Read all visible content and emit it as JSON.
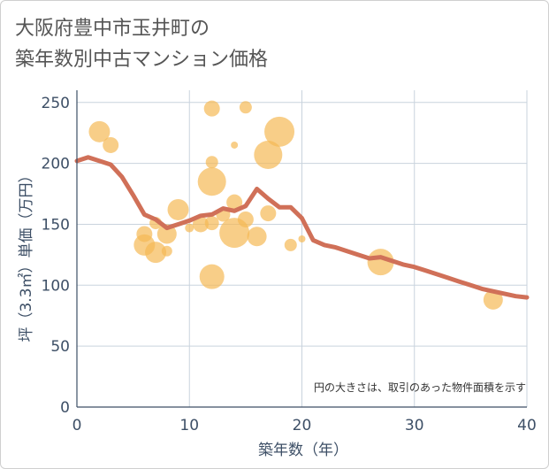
{
  "title_line1": "大阪府豊中市玉井町の",
  "title_line2": "築年数別中古マンション価格",
  "chart_data": {
    "type": "scatter",
    "xlabel": "築年数（年）",
    "ylabel": "坪（3.3㎡）単価（万円）",
    "xlim": [
      0,
      40
    ],
    "ylim": [
      0,
      260
    ],
    "xticks": [
      "0",
      "10",
      "20",
      "30",
      "40"
    ],
    "yticks": [
      "0",
      "50",
      "100",
      "150",
      "200",
      "250"
    ],
    "grid": true,
    "note": "円の大きさは、取引のあった物件面積を示す",
    "colors": {
      "bubble": "#f5b955",
      "line": "#d07058",
      "grid": "#c9d3dd"
    },
    "bubbles": [
      {
        "x": 2,
        "y": 226,
        "size": 12
      },
      {
        "x": 3,
        "y": 215,
        "size": 9
      },
      {
        "x": 6,
        "y": 142,
        "size": 9
      },
      {
        "x": 6,
        "y": 133,
        "size": 12
      },
      {
        "x": 7,
        "y": 127,
        "size": 12
      },
      {
        "x": 7,
        "y": 151,
        "size": 7
      },
      {
        "x": 8,
        "y": 142,
        "size": 11
      },
      {
        "x": 8,
        "y": 128,
        "size": 6
      },
      {
        "x": 9,
        "y": 162,
        "size": 12
      },
      {
        "x": 10,
        "y": 147,
        "size": 5
      },
      {
        "x": 11,
        "y": 150,
        "size": 9
      },
      {
        "x": 12,
        "y": 245,
        "size": 9
      },
      {
        "x": 12,
        "y": 201,
        "size": 7
      },
      {
        "x": 12,
        "y": 185,
        "size": 16
      },
      {
        "x": 12,
        "y": 151,
        "size": 8
      },
      {
        "x": 12,
        "y": 107,
        "size": 14
      },
      {
        "x": 13,
        "y": 158,
        "size": 8
      },
      {
        "x": 14,
        "y": 143,
        "size": 17
      },
      {
        "x": 14,
        "y": 168,
        "size": 9
      },
      {
        "x": 14,
        "y": 215,
        "size": 4
      },
      {
        "x": 15,
        "y": 246,
        "size": 7
      },
      {
        "x": 15,
        "y": 154,
        "size": 9
      },
      {
        "x": 16,
        "y": 140,
        "size": 11
      },
      {
        "x": 17,
        "y": 207,
        "size": 16
      },
      {
        "x": 17,
        "y": 159,
        "size": 9
      },
      {
        "x": 18,
        "y": 226,
        "size": 17
      },
      {
        "x": 19,
        "y": 133,
        "size": 7
      },
      {
        "x": 20,
        "y": 138,
        "size": 4
      },
      {
        "x": 27,
        "y": 119,
        "size": 15
      },
      {
        "x": 37,
        "y": 88,
        "size": 11
      }
    ],
    "series": [
      {
        "x": [
          0,
          1,
          2,
          3,
          4,
          5,
          6,
          7,
          8,
          9,
          10,
          11,
          12,
          13,
          14,
          15,
          16,
          17,
          18,
          19,
          20,
          21,
          22,
          23,
          24,
          25,
          26,
          27,
          28,
          29,
          30,
          31,
          32,
          33,
          34,
          35,
          36,
          37,
          38,
          39,
          40
        ],
        "y": [
          202,
          205,
          202,
          199,
          189,
          174,
          158,
          154,
          147,
          150,
          153,
          157,
          158,
          163,
          161,
          165,
          179,
          171,
          164,
          164,
          155,
          137,
          133,
          131,
          128,
          125,
          122,
          123,
          120,
          117,
          115,
          112,
          109,
          106,
          103,
          100,
          97,
          95,
          93,
          91,
          90
        ]
      }
    ]
  }
}
